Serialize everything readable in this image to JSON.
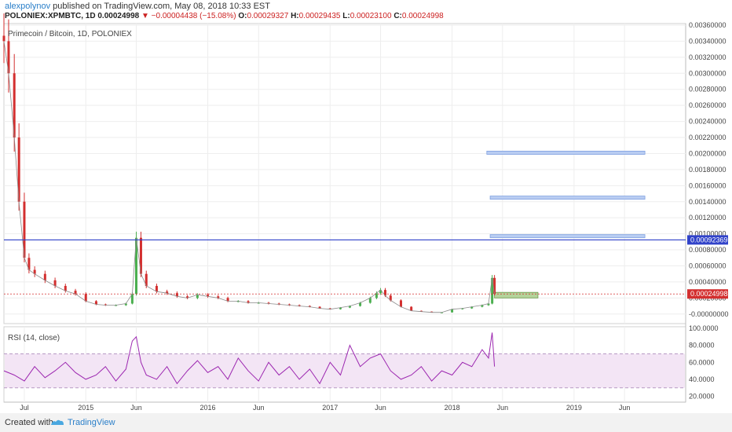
{
  "header": {
    "user": "alexpolynov",
    "published_text": "published on TradingView.com, May 08, 2018 10:33 EST",
    "symbol_line": "POLONIEX:XPMBTC, 1D",
    "last": "0.00024998",
    "change_arrow": "▼",
    "change": "−0.00004438 (−15.08%)",
    "o_label": "O:",
    "o": "0.00029327",
    "h_label": "H:",
    "h": "0.00029435",
    "l_label": "L:",
    "l": "0.00023100",
    "c_label": "C:",
    "c": "0.00024998"
  },
  "footer": {
    "created_with": "Created with",
    "brand": "TradingView"
  },
  "colors": {
    "up": "#4caf50",
    "down": "#d32f2f",
    "rsi_line": "#9c27b0",
    "rsi_band": "#f3e5f5",
    "hline": "#3042c9",
    "zone": "#b9cdf2",
    "green_zone": "#b4d39a"
  },
  "chart_data": [
    {
      "type": "candlestick",
      "title": "Primecoin / Bitcoin, 1D, POLONIEX",
      "ylim": [
        -0.0001,
        0.0036
      ],
      "y_ticks": [
        "0.00360000",
        "0.00340000",
        "0.00320000",
        "0.00300000",
        "0.00280000",
        "0.00260000",
        "0.00240000",
        "0.00220000",
        "0.00200000",
        "0.00180000",
        "0.00160000",
        "0.00140000",
        "0.00120000",
        "0.00100000",
        "0.00080000",
        "0.00060000",
        "0.00040000",
        "0.00020000",
        "-0.00000000"
      ],
      "y_tick_values": [
        0.0036,
        0.0034,
        0.0032,
        0.003,
        0.0028,
        0.0026,
        0.0024,
        0.0022,
        0.002,
        0.0018,
        0.0016,
        0.0014,
        0.0012,
        0.001,
        0.0008,
        0.0006,
        0.0004,
        0.0002,
        0.0
      ],
      "x_ticks": [
        "Jul",
        "2015",
        "Jun",
        "2016",
        "Jun",
        "2017",
        "Jun",
        "2018",
        "Jun",
        "2019",
        "Jun"
      ],
      "x_tick_dates": [
        "2014-07-01",
        "2015-01-01",
        "2015-06-01",
        "2016-01-01",
        "2016-06-01",
        "2017-01-01",
        "2017-06-01",
        "2018-01-01",
        "2018-06-01",
        "2019-01-01",
        "2019-06-01"
      ],
      "x_range": [
        "2014-05-01",
        "2019-12-01"
      ],
      "series": [
        {
          "x": [
            "2014-05-01",
            "2014-05-15",
            "2014-06-01",
            "2014-06-15",
            "2014-07-01",
            "2014-07-15",
            "2014-08-01",
            "2014-09-01",
            "2014-10-01",
            "2014-11-01",
            "2014-12-01",
            "2015-01-01",
            "2015-02-01",
            "2015-03-01",
            "2015-04-01",
            "2015-05-01",
            "2015-05-20",
            "2015-06-01",
            "2015-06-15",
            "2015-07-01",
            "2015-08-01",
            "2015-09-01",
            "2015-10-01",
            "2015-11-01",
            "2015-12-01",
            "2016-01-01",
            "2016-02-01",
            "2016-03-01",
            "2016-04-01",
            "2016-05-01",
            "2016-06-01",
            "2016-07-01",
            "2016-08-01",
            "2016-09-01",
            "2016-10-01",
            "2016-11-01",
            "2016-12-01",
            "2017-01-01",
            "2017-02-01",
            "2017-03-01",
            "2017-04-01",
            "2017-05-01",
            "2017-05-20",
            "2017-06-01",
            "2017-06-15",
            "2017-07-01",
            "2017-08-01",
            "2017-09-01",
            "2017-10-01",
            "2017-11-01",
            "2017-12-01",
            "2018-01-01",
            "2018-02-01",
            "2018-03-01",
            "2018-04-01",
            "2018-04-20",
            "2018-05-01",
            "2018-05-08"
          ],
          "close": [
            0.0034,
            0.003,
            0.0022,
            0.0014,
            0.0007,
            0.00055,
            0.0005,
            0.00042,
            0.00035,
            0.00029,
            0.00025,
            0.00016,
            0.00012,
            0.00011,
            0.00011,
            0.00013,
            0.00025,
            0.00095,
            0.0005,
            0.00035,
            0.00028,
            0.00026,
            0.00022,
            0.0002,
            0.00024,
            0.00022,
            0.0002,
            0.00016,
            0.00016,
            0.00014,
            0.00014,
            0.00013,
            0.00012,
            0.00011,
            0.0001,
            9e-05,
            7e-05,
            6e-05,
            8e-05,
            0.0001,
            0.00014,
            0.0002,
            0.00026,
            0.0003,
            0.00023,
            0.00017,
            9e-05,
            4e-05,
            3e-05,
            2e-05,
            2e-05,
            6e-05,
            7e-05,
            9e-05,
            0.00011,
            0.00013,
            0.00045,
            0.00025
          ]
        }
      ],
      "horizontal_line": {
        "value": 0.00092369,
        "label": "0.00092369"
      },
      "last_price_label": "0.00024998",
      "zones": [
        {
          "from": "2018-04-15",
          "to": "2019-08-01",
          "low": 0.00199,
          "high": 0.00203
        },
        {
          "from": "2018-04-25",
          "to": "2019-08-01",
          "low": 0.00143,
          "high": 0.00147
        },
        {
          "from": "2018-04-25",
          "to": "2019-08-01",
          "low": 0.00095,
          "high": 0.00099
        },
        {
          "from": "2018-05-08",
          "to": "2018-09-15",
          "low": 0.0002,
          "high": 0.00027
        }
      ]
    },
    {
      "type": "line",
      "title": "RSI (14, close)",
      "ylim": [
        15,
        100
      ],
      "y_ticks": [
        "100.0000",
        "80.0000",
        "60.0000",
        "40.0000",
        "20.0000"
      ],
      "y_tick_values": [
        100,
        80,
        60,
        40,
        20
      ],
      "band": [
        30,
        70
      ],
      "series": [
        {
          "x": [
            "2014-05-01",
            "2014-06-01",
            "2014-07-01",
            "2014-08-01",
            "2014-09-01",
            "2014-10-01",
            "2014-11-01",
            "2014-12-01",
            "2015-01-01",
            "2015-02-01",
            "2015-03-01",
            "2015-04-01",
            "2015-05-01",
            "2015-05-20",
            "2015-06-01",
            "2015-06-15",
            "2015-07-01",
            "2015-08-01",
            "2015-09-01",
            "2015-10-01",
            "2015-11-01",
            "2015-12-01",
            "2016-01-01",
            "2016-02-01",
            "2016-03-01",
            "2016-04-01",
            "2016-05-01",
            "2016-06-01",
            "2016-07-01",
            "2016-08-01",
            "2016-09-01",
            "2016-10-01",
            "2016-11-01",
            "2016-12-01",
            "2017-01-01",
            "2017-02-01",
            "2017-03-01",
            "2017-04-01",
            "2017-05-01",
            "2017-06-01",
            "2017-07-01",
            "2017-08-01",
            "2017-09-01",
            "2017-10-01",
            "2017-11-01",
            "2017-12-01",
            "2018-01-01",
            "2018-02-01",
            "2018-03-01",
            "2018-04-01",
            "2018-04-20",
            "2018-05-01",
            "2018-05-08"
          ],
          "values": [
            50,
            45,
            38,
            55,
            42,
            50,
            60,
            48,
            40,
            45,
            55,
            38,
            52,
            85,
            90,
            60,
            45,
            40,
            55,
            35,
            50,
            62,
            48,
            55,
            40,
            65,
            50,
            38,
            60,
            45,
            55,
            40,
            52,
            35,
            60,
            45,
            80,
            55,
            65,
            70,
            50,
            40,
            45,
            55,
            38,
            50,
            45,
            60,
            55,
            75,
            65,
            95,
            55
          ]
        }
      ]
    }
  ]
}
